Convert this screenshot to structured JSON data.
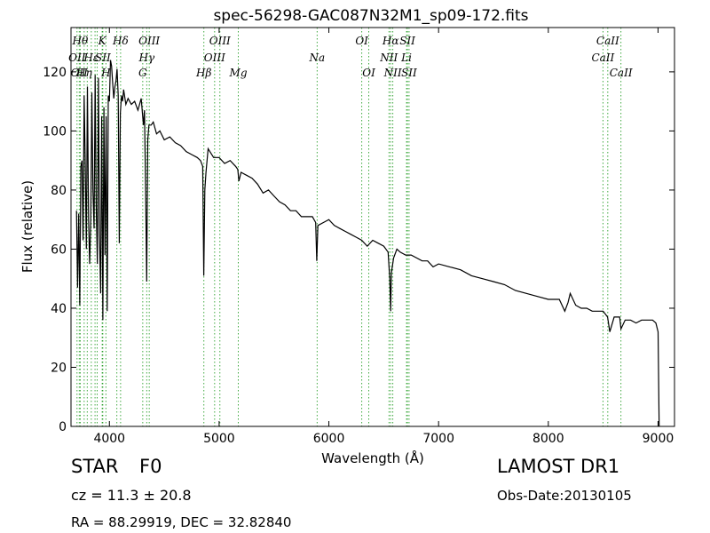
{
  "chart_data": {
    "type": "line",
    "title": "spec-56298-GAC087N32M1_sp09-172.fits",
    "xlabel": "Wavelength (Å)",
    "ylabel": "Flux (relative)",
    "xlim": [
      3650,
      9150
    ],
    "ylim": [
      0,
      135
    ],
    "xticks": [
      4000,
      5000,
      6000,
      7000,
      8000,
      9000
    ],
    "yticks": [
      0,
      20,
      40,
      60,
      80,
      100,
      120
    ],
    "grid": false,
    "line_color": "#000000",
    "marker_color": "#2ca02c",
    "series": [
      {
        "x": [
          3700,
          3710,
          3720,
          3730,
          3740,
          3750,
          3760,
          3770,
          3780,
          3790,
          3800,
          3810,
          3820,
          3830,
          3840,
          3850,
          3860,
          3870,
          3880,
          3890,
          3900,
          3910,
          3920,
          3930,
          3940,
          3950,
          3960,
          3970,
          3980,
          3990,
          4000,
          4010,
          4020,
          4030,
          4040,
          4050,
          4060,
          4070,
          4080,
          4090,
          4100,
          4110,
          4120,
          4130,
          4150,
          4170,
          4200,
          4230,
          4260,
          4290,
          4310,
          4320,
          4330,
          4340,
          4350,
          4360,
          4380,
          4400,
          4430,
          4460,
          4500,
          4550,
          4600,
          4650,
          4700,
          4750,
          4800,
          4830,
          4850,
          4860,
          4870,
          4880,
          4900,
          4950,
          5000,
          5050,
          5100,
          5150,
          5170,
          5180,
          5200,
          5250,
          5300,
          5350,
          5400,
          5450,
          5500,
          5550,
          5600,
          5650,
          5700,
          5750,
          5800,
          5850,
          5880,
          5890,
          5900,
          5950,
          6000,
          6050,
          6100,
          6150,
          6200,
          6250,
          6300,
          6350,
          6400,
          6450,
          6500,
          6540,
          6555,
          6563,
          6570,
          6590,
          6620,
          6650,
          6700,
          6750,
          6800,
          6850,
          6900,
          6950,
          7000,
          7100,
          7200,
          7300,
          7400,
          7500,
          7600,
          7700,
          7800,
          7900,
          8000,
          8100,
          8150,
          8180,
          8200,
          8250,
          8300,
          8350,
          8400,
          8450,
          8500,
          8540,
          8560,
          8600,
          8650,
          8662,
          8700,
          8750,
          8800,
          8850,
          8900,
          8950,
          8980,
          9000,
          9010
        ],
        "y": [
          73,
          47,
          72,
          41,
          88,
          90,
          63,
          112,
          88,
          60,
          115,
          70,
          55,
          70,
          113,
          80,
          67,
          119,
          75,
          55,
          118,
          65,
          45,
          105,
          36,
          108,
          58,
          105,
          39,
          112,
          110,
          124,
          122,
          116,
          111,
          115,
          117,
          121,
          112,
          62,
          106,
          112,
          110,
          114,
          109,
          111,
          109,
          110,
          107,
          111,
          102,
          107,
          79,
          49,
          97,
          102,
          102,
          103,
          99,
          100,
          97,
          98,
          96,
          95,
          93,
          92,
          91,
          90,
          88,
          51,
          80,
          86,
          94,
          91,
          91,
          89,
          90,
          88,
          87,
          83,
          86,
          85,
          84,
          82,
          79,
          80,
          78,
          76,
          75,
          73,
          73,
          71,
          71,
          71,
          69,
          56,
          68,
          69,
          70,
          68,
          67,
          66,
          65,
          64,
          63,
          61,
          63,
          62,
          61,
          59,
          50,
          39,
          52,
          57,
          60,
          59,
          58,
          58,
          57,
          56,
          56,
          54,
          55,
          54,
          53,
          51,
          50,
          49,
          48,
          46,
          45,
          44,
          43,
          43,
          39,
          42,
          45,
          41,
          40,
          40,
          39,
          39,
          39,
          37,
          32,
          37,
          37,
          33,
          36,
          36,
          35,
          36,
          36,
          36,
          35,
          32,
          0
        ]
      }
    ],
    "line_markers": [
      {
        "x": 3705,
        "label": "OII",
        "row": 2
      },
      {
        "x": 3725,
        "label": "OII",
        "row": 3
      },
      {
        "x": 3734,
        "label": "Hθ",
        "row": 1
      },
      {
        "x": 3770,
        "label": "Hη",
        "row": 3
      },
      {
        "x": 3798,
        "label": "",
        "row": 0
      },
      {
        "x": 3835,
        "label": "Hε",
        "row": 2
      },
      {
        "x": 3869,
        "label": "",
        "row": 0
      },
      {
        "x": 3889,
        "label": "",
        "row": 0
      },
      {
        "x": 3934,
        "label": "K",
        "row": 1
      },
      {
        "x": 3940,
        "label": "SII",
        "row": 2
      },
      {
        "x": 3968,
        "label": "H",
        "row": 3
      },
      {
        "x": 4068,
        "label": "",
        "row": 0
      },
      {
        "x": 4102,
        "label": "Hδ",
        "row": 1
      },
      {
        "x": 4304,
        "label": "G",
        "row": 3
      },
      {
        "x": 4340,
        "label": "Hγ",
        "row": 2
      },
      {
        "x": 4363,
        "label": "OIII",
        "row": 1
      },
      {
        "x": 4861,
        "label": "Hβ",
        "row": 3
      },
      {
        "x": 4959,
        "label": "OIII",
        "row": 2
      },
      {
        "x": 5007,
        "label": "OIII",
        "row": 1
      },
      {
        "x": 5175,
        "label": "Mg",
        "row": 3
      },
      {
        "x": 5893,
        "label": "Na",
        "row": 2
      },
      {
        "x": 6300,
        "label": "OI",
        "row": 1
      },
      {
        "x": 6364,
        "label": "OI",
        "row": 3
      },
      {
        "x": 6548,
        "label": "NII",
        "row": 2
      },
      {
        "x": 6563,
        "label": "Hα",
        "row": 1
      },
      {
        "x": 6583,
        "label": "NII",
        "row": 3
      },
      {
        "x": 6708,
        "label": "Li",
        "row": 2
      },
      {
        "x": 6716,
        "label": "SII",
        "row": 1
      },
      {
        "x": 6731,
        "label": "SII",
        "row": 3
      },
      {
        "x": 8498,
        "label": "CaII",
        "row": 2
      },
      {
        "x": 8542,
        "label": "CaII",
        "row": 1
      },
      {
        "x": 8662,
        "label": "CaII",
        "row": 3
      }
    ]
  },
  "info": {
    "object_class": "STAR",
    "subclass": "F0",
    "cz": "cz = 11.3 ± 20.8",
    "coords": "RA = 88.29919, DEC = 32.82840",
    "survey": "LAMOST DR1",
    "obs_date": "Obs-Date:20130105"
  }
}
